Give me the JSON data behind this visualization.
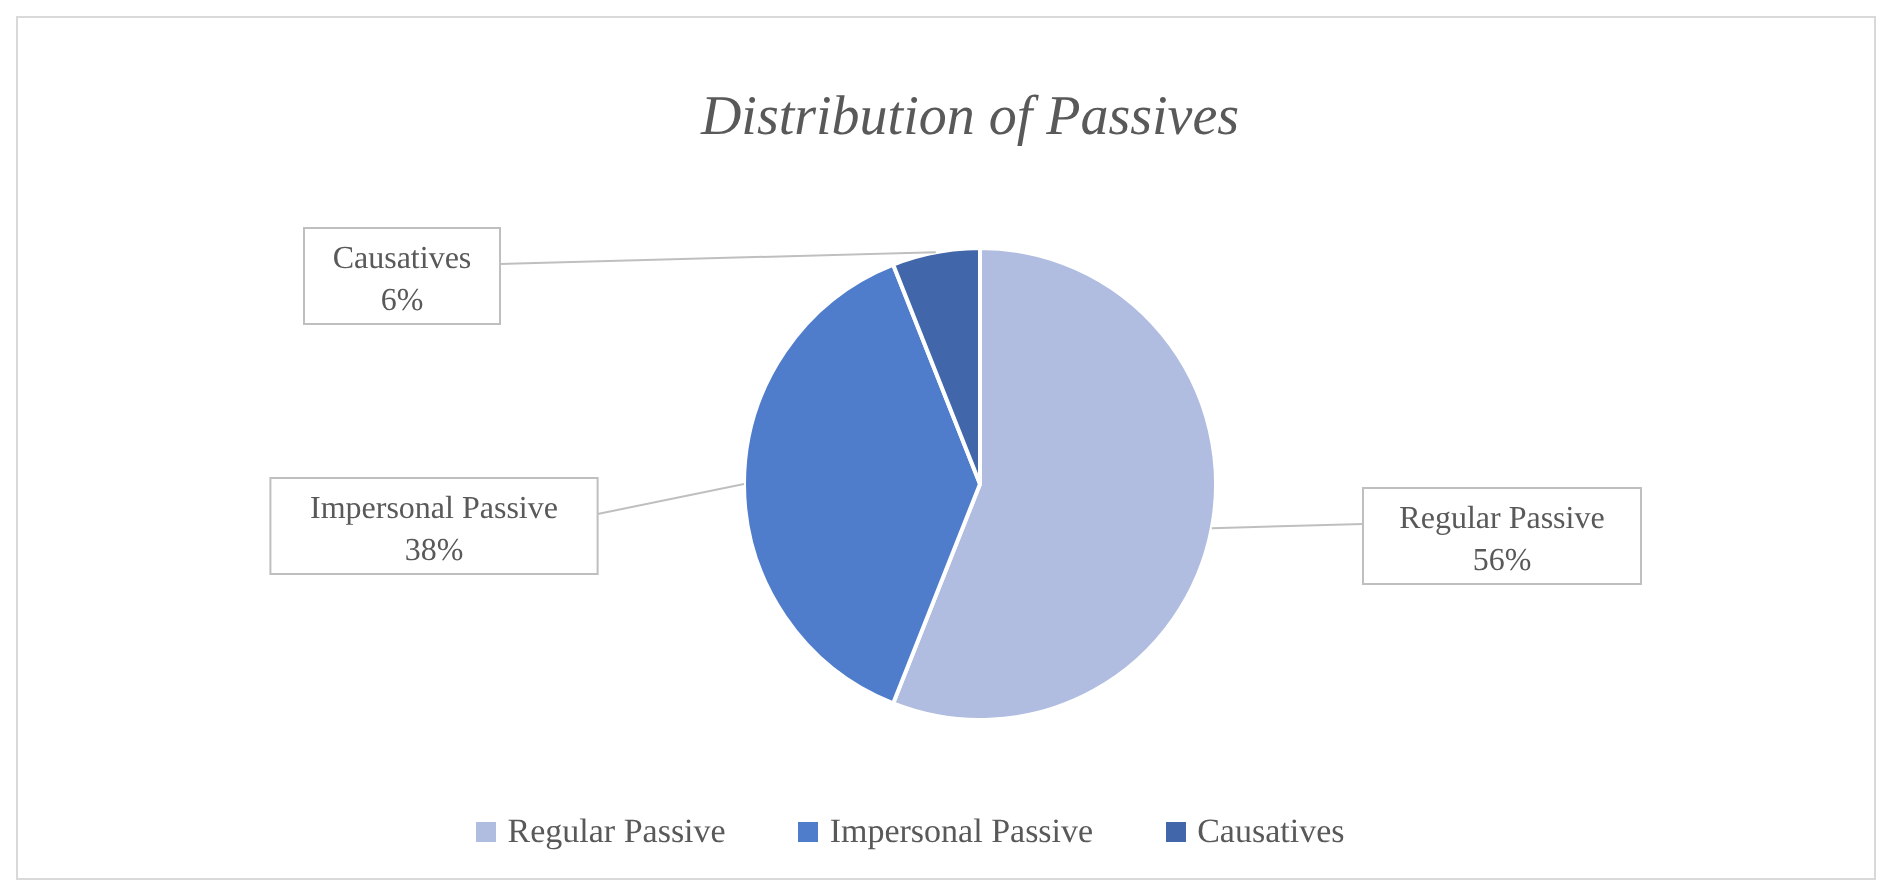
{
  "chart_data": {
    "type": "pie",
    "title": "Distribution of Passives",
    "categories": [
      "Regular Passive",
      "Impersonal Passive",
      "Causatives"
    ],
    "values": [
      56,
      38,
      6
    ],
    "colors": [
      "#b0bde0",
      "#4f7dcb",
      "#4167aa"
    ],
    "value_labels": [
      "56%",
      "38%",
      "6%"
    ],
    "legend": "bottom"
  }
}
